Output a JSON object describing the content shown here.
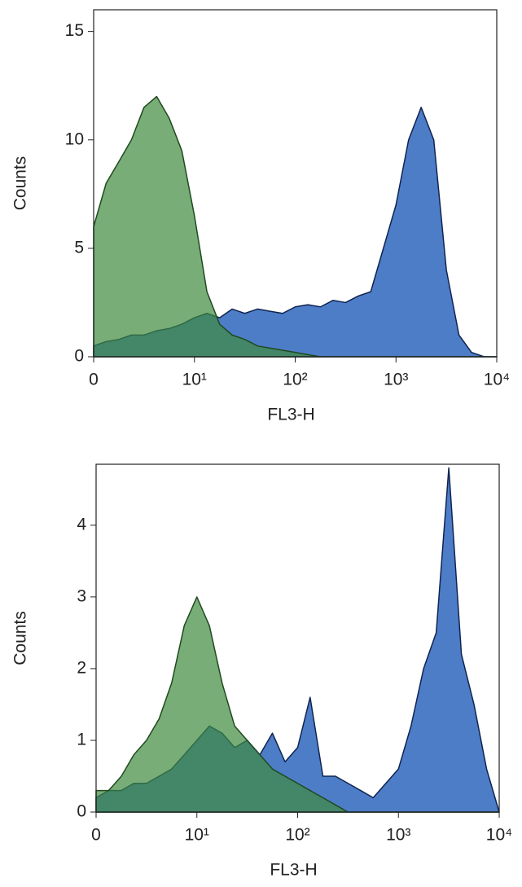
{
  "chart_data": [
    {
      "type": "area",
      "xscale": "log",
      "xlabel": "FL3-H",
      "ylabel": "Counts",
      "xlim": [
        1,
        10000
      ],
      "xticks": [
        {
          "value": 1,
          "label": "0"
        },
        {
          "value": 10,
          "label": "10¹"
        },
        {
          "value": 100,
          "label": "10²"
        },
        {
          "value": 1000,
          "label": "10³"
        },
        {
          "value": 10000,
          "label": "10⁴"
        }
      ],
      "ylim": [
        0,
        16
      ],
      "yticks": [
        0,
        5,
        10,
        15
      ],
      "x": [
        1,
        1.33,
        1.78,
        2.37,
        3.16,
        4.22,
        5.62,
        7.5,
        10,
        13.3,
        17.8,
        23.7,
        31.6,
        42.2,
        56.2,
        75,
        100,
        133,
        178,
        237,
        316,
        422,
        562,
        750,
        1000,
        1334,
        1778,
        2371,
        3162,
        4217,
        5623,
        7499,
        10000
      ],
      "series": [
        {
          "color": "#3b6fc2",
          "values": [
            0.5,
            0.7,
            0.8,
            1,
            1,
            1.2,
            1.3,
            1.5,
            1.8,
            2,
            1.8,
            2.2,
            2,
            2.2,
            2.1,
            2,
            2.3,
            2.4,
            2.3,
            2.6,
            2.5,
            2.8,
            3,
            5,
            7,
            10,
            11.5,
            10,
            4,
            1,
            0.2,
            0,
            0
          ]
        },
        {
          "color": "#3f8a3f",
          "values": [
            6,
            8,
            9,
            10,
            11.5,
            12,
            11,
            9.5,
            6.5,
            3,
            1.5,
            1,
            0.8,
            0.5,
            0.4,
            0.3,
            0.2,
            0.1,
            0,
            0,
            0,
            0,
            0,
            0,
            0,
            0,
            0,
            0,
            0,
            0,
            0,
            0,
            0
          ]
        }
      ]
    },
    {
      "type": "area",
      "xscale": "log",
      "xlabel": "FL3-H",
      "ylabel": "Counts",
      "xlim": [
        1,
        10000
      ],
      "xticks": [
        {
          "value": 1,
          "label": "0"
        },
        {
          "value": 10,
          "label": "10¹"
        },
        {
          "value": 100,
          "label": "10²"
        },
        {
          "value": 1000,
          "label": "10³"
        },
        {
          "value": 10000,
          "label": "10⁴"
        }
      ],
      "ylim": [
        0,
        4.85
      ],
      "yticks": [
        0,
        1,
        2,
        3,
        4
      ],
      "x": [
        1,
        1.33,
        1.78,
        2.37,
        3.16,
        4.22,
        5.62,
        7.5,
        10,
        13.3,
        17.8,
        23.7,
        31.6,
        42.2,
        56.2,
        75,
        100,
        133,
        178,
        237,
        316,
        422,
        562,
        750,
        1000,
        1334,
        1778,
        2371,
        3162,
        4217,
        5623,
        7499,
        10000
      ],
      "series": [
        {
          "color": "#3b6fc2",
          "values": [
            0.2,
            0.3,
            0.3,
            0.4,
            0.4,
            0.5,
            0.6,
            0.8,
            1,
            1.2,
            1.1,
            0.9,
            1,
            0.8,
            1.1,
            0.7,
            0.9,
            1.6,
            0.5,
            0.5,
            0.4,
            0.3,
            0.2,
            0.4,
            0.6,
            1.2,
            2,
            2.5,
            4.8,
            2.2,
            1.5,
            0.6,
            0
          ]
        },
        {
          "color": "#3f8a3f",
          "values": [
            0.3,
            0.3,
            0.5,
            0.8,
            1,
            1.3,
            1.8,
            2.6,
            3,
            2.6,
            1.8,
            1.2,
            1,
            0.8,
            0.6,
            0.5,
            0.4,
            0.3,
            0.2,
            0.1,
            0,
            0,
            0,
            0,
            0,
            0,
            0,
            0,
            0,
            0,
            0,
            0,
            0
          ]
        }
      ]
    }
  ]
}
